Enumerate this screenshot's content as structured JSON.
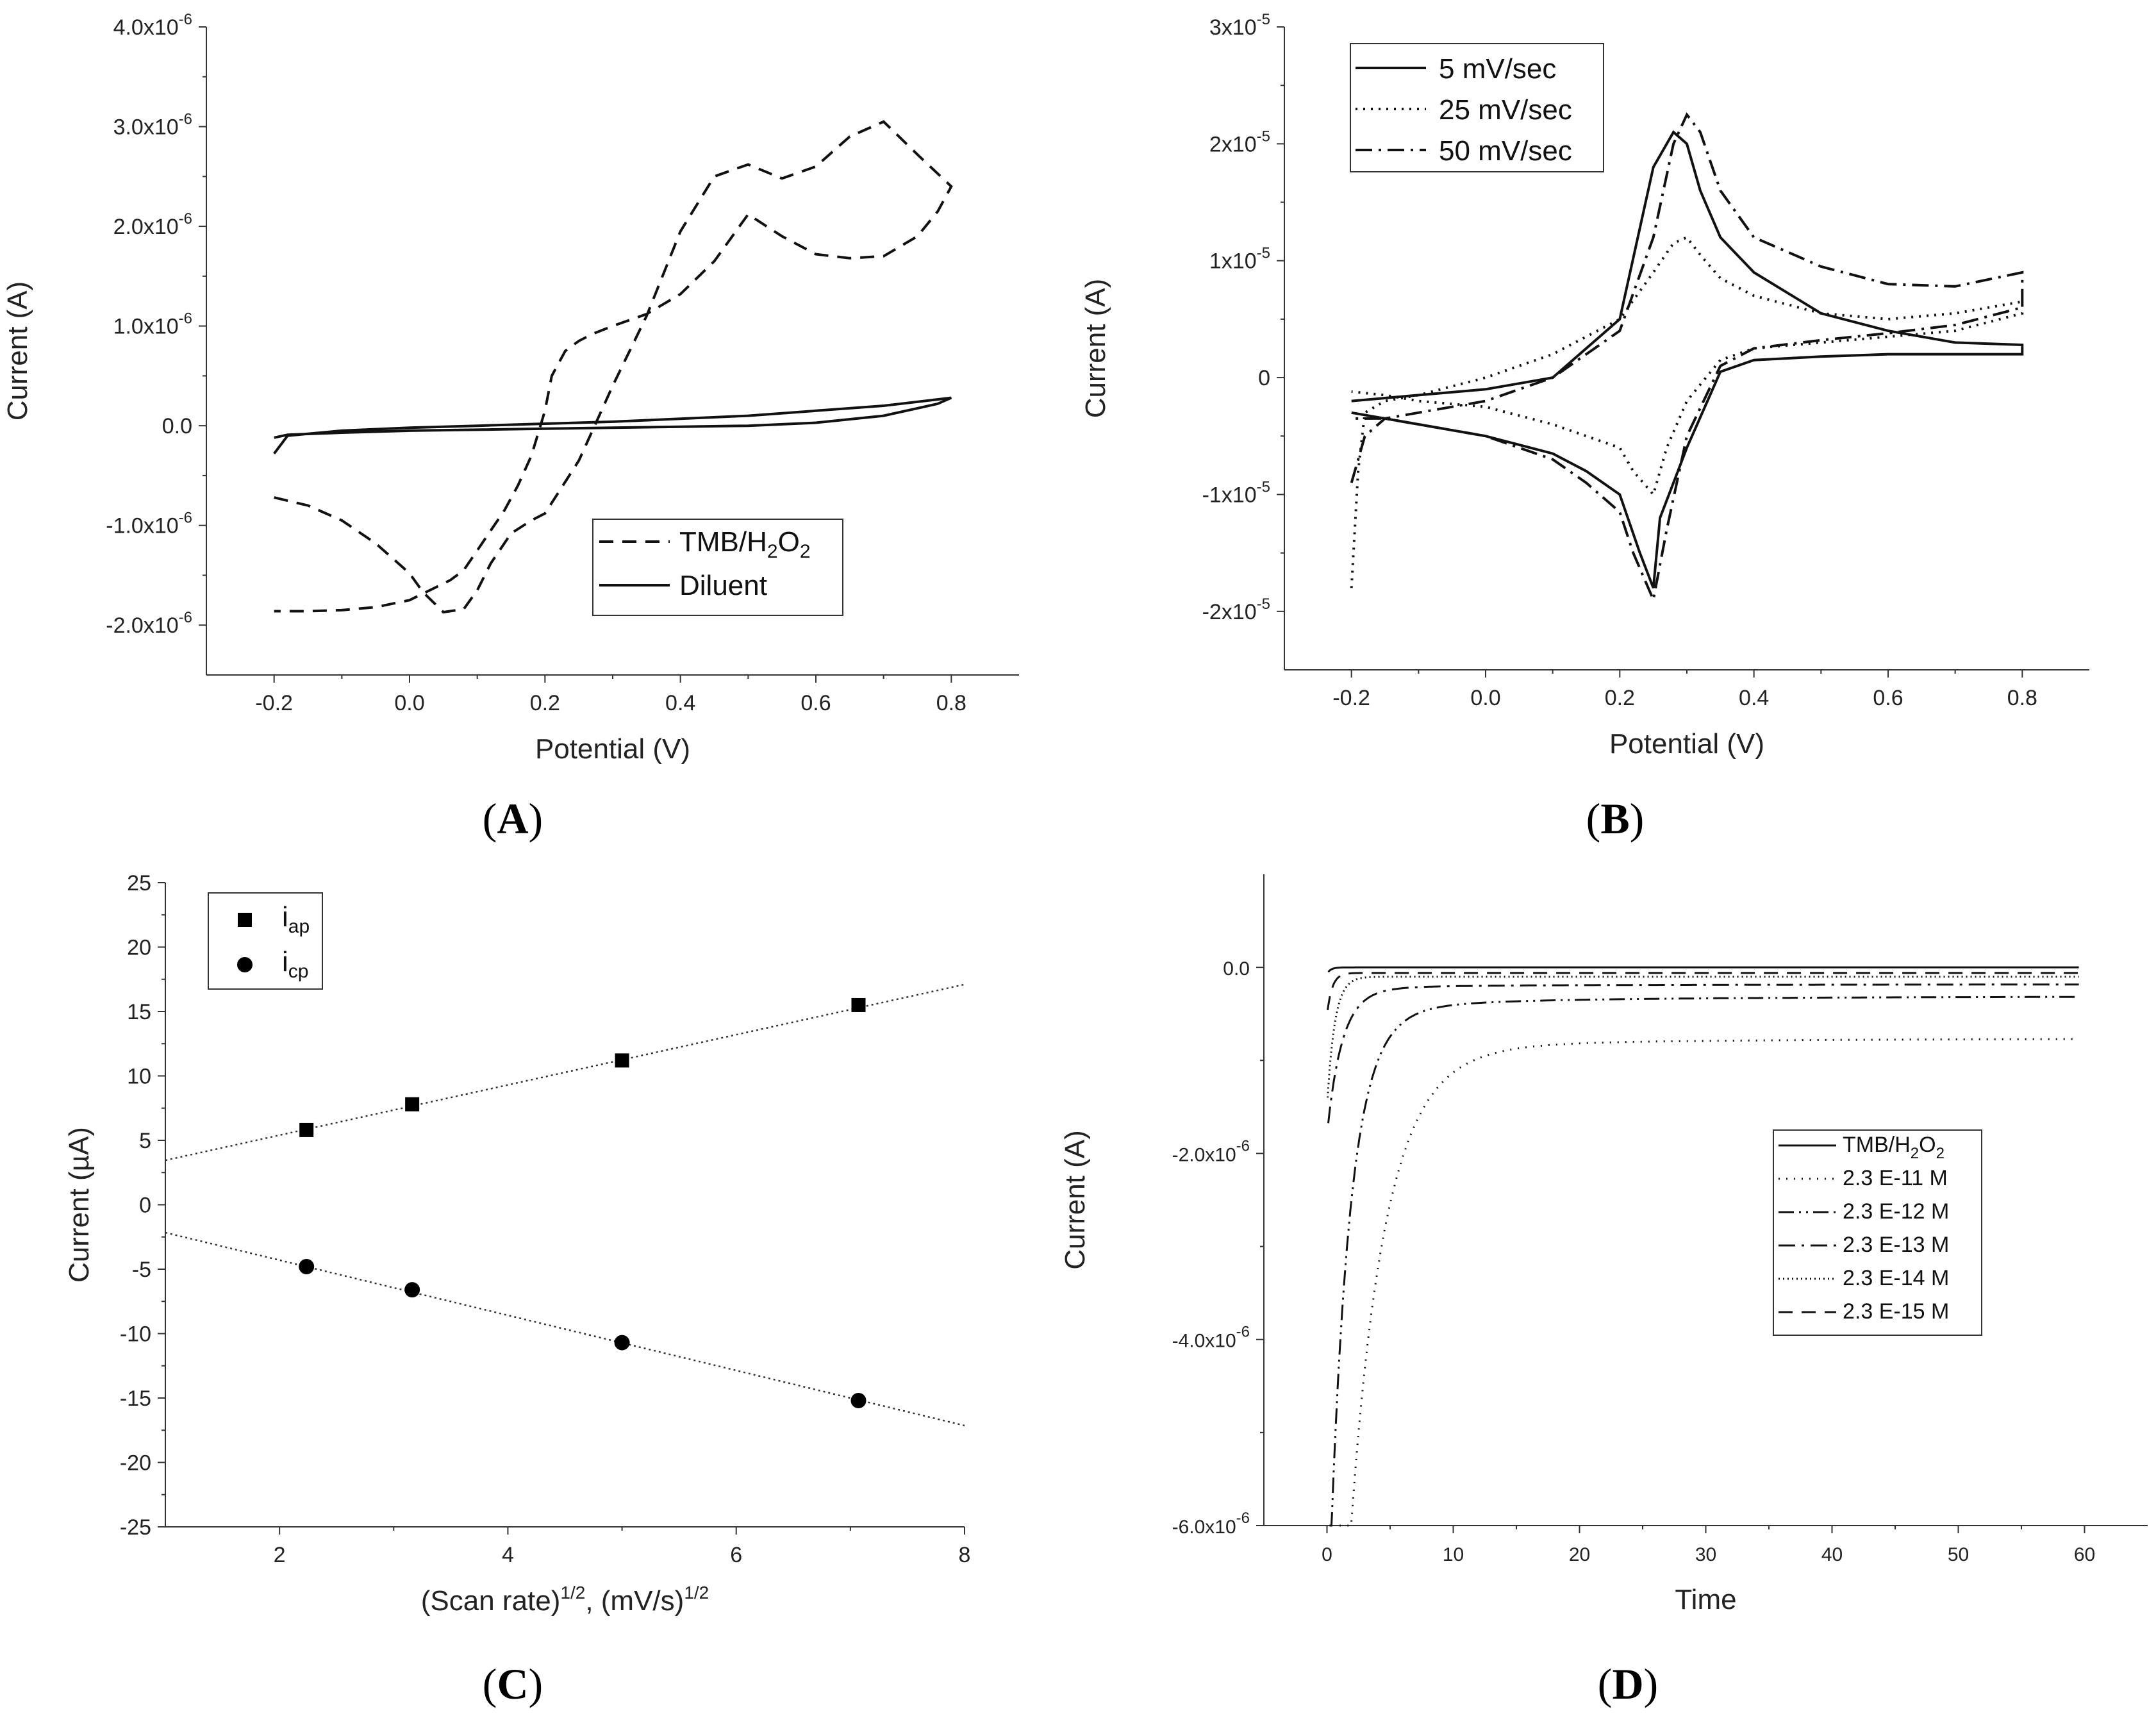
{
  "chart_data": [
    {
      "panel": "A",
      "type": "line",
      "xlabel": "Potential (V)",
      "ylabel": "Current (A)",
      "xlim": [
        -0.3,
        0.9
      ],
      "ylim": [
        -2.5e-06,
        4e-06
      ],
      "xticks": [
        -0.2,
        0.0,
        0.2,
        0.4,
        0.6,
        0.8
      ],
      "xtick_labels": [
        "-0.2",
        "0.0",
        "0.2",
        "0.4",
        "0.6",
        "0.8"
      ],
      "yticks": [
        -2e-06,
        -1e-06,
        0.0,
        1e-06,
        2e-06,
        3e-06,
        4e-06
      ],
      "ytick_labels": [
        {
          "mant": "-2.0x10",
          "exp": "-6"
        },
        {
          "mant": "-1.0x10",
          "exp": "-6"
        },
        {
          "mant": "0.0",
          "exp": ""
        },
        {
          "mant": "1.0x10",
          "exp": "-6"
        },
        {
          "mant": "2.0x10",
          "exp": "-6"
        },
        {
          "mant": "3.0x10",
          "exp": "-6"
        },
        {
          "mant": "4.0x10",
          "exp": "-6"
        }
      ],
      "legend_position": "lower-right",
      "series": [
        {
          "name": "TMB/H2O2",
          "legend_parts": [
            "TMB/H",
            "2",
            "O",
            "2"
          ],
          "style": "dashed",
          "x": [
            -0.2,
            -0.15,
            -0.1,
            -0.05,
            0.0,
            0.02,
            0.05,
            0.08,
            0.1,
            0.12,
            0.15,
            0.18,
            0.2,
            0.25,
            0.3,
            0.35,
            0.4,
            0.45,
            0.5,
            0.55,
            0.6,
            0.65,
            0.7,
            0.75,
            0.8,
            0.78,
            0.75,
            0.7,
            0.65,
            0.6,
            0.55,
            0.5,
            0.45,
            0.4,
            0.35,
            0.3,
            0.27,
            0.25,
            0.23,
            0.21,
            0.2,
            0.18,
            0.16,
            0.14,
            0.12,
            0.1,
            0.08,
            0.06,
            0.03,
            0.0,
            -0.05,
            -0.1,
            -0.15,
            -0.2
          ],
          "y": [
            -7.2e-07,
            -8e-07,
            -9.5e-07,
            -1.18e-06,
            -1.48e-06,
            -1.67e-06,
            -1.87e-06,
            -1.84e-06,
            -1.65e-06,
            -1.38e-06,
            -1.08e-06,
            -9.5e-07,
            -8.8e-07,
            -3.5e-07,
            4e-07,
            1.1e-06,
            1.95e-06,
            2.5e-06,
            2.62e-06,
            2.48e-06,
            2.6e-06,
            2.9e-06,
            3.05e-06,
            2.72e-06,
            2.4e-06,
            2.15e-06,
            1.9e-06,
            1.7e-06,
            1.68e-06,
            1.72e-06,
            1.9e-06,
            2.12e-06,
            1.65e-06,
            1.32e-06,
            1.12e-06,
            1e-06,
            9.2e-07,
            8.5e-07,
            7.5e-07,
            5e-07,
            1.5e-07,
            -3e-07,
            -6e-07,
            -8.5e-07,
            -1.05e-06,
            -1.25e-06,
            -1.45e-06,
            -1.55e-06,
            -1.65e-06,
            -1.75e-06,
            -1.82e-06,
            -1.85e-06,
            -1.86e-06,
            -1.86e-06
          ]
        },
        {
          "name": "Diluent",
          "style": "solid",
          "x": [
            -0.2,
            -0.18,
            -0.1,
            0.0,
            0.1,
            0.2,
            0.3,
            0.4,
            0.5,
            0.6,
            0.7,
            0.8,
            0.78,
            0.7,
            0.6,
            0.5,
            0.4,
            0.3,
            0.2,
            0.1,
            0.0,
            -0.1,
            -0.18,
            -0.2
          ],
          "y": [
            -2.8e-07,
            -1e-07,
            -5e-08,
            -2e-08,
            0.0,
            2e-08,
            4e-08,
            7e-08,
            1e-07,
            1.5e-07,
            2e-07,
            2.8e-07,
            2.2e-07,
            1e-07,
            3e-08,
            0.0,
            -1e-08,
            -2e-08,
            -3e-08,
            -4e-08,
            -5e-08,
            -7e-08,
            -9e-08,
            -1.2e-07
          ]
        }
      ]
    },
    {
      "panel": "B",
      "type": "line",
      "xlabel": "Potential (V)",
      "ylabel": "Current (A)",
      "xlim": [
        -0.3,
        0.9
      ],
      "ylim": [
        -2.5e-05,
        3e-05
      ],
      "xticks": [
        -0.2,
        0.0,
        0.2,
        0.4,
        0.6,
        0.8
      ],
      "xtick_labels": [
        "-0.2",
        "0.0",
        "0.2",
        "0.4",
        "0.6",
        "0.8"
      ],
      "yticks": [
        -2e-05,
        -1e-05,
        0,
        1e-05,
        2e-05,
        3e-05
      ],
      "ytick_labels": [
        {
          "mant": "-2x10",
          "exp": "-5"
        },
        {
          "mant": "-1x10",
          "exp": "-5"
        },
        {
          "mant": "0",
          "exp": ""
        },
        {
          "mant": "1x10",
          "exp": "-5"
        },
        {
          "mant": "2x10",
          "exp": "-5"
        },
        {
          "mant": "3x10",
          "exp": "-5"
        }
      ],
      "legend_position": "top-left",
      "series": [
        {
          "name": "5 mV/sec",
          "style": "solid",
          "x": [
            -0.2,
            -0.1,
            0.0,
            0.1,
            0.2,
            0.25,
            0.28,
            0.3,
            0.32,
            0.35,
            0.4,
            0.5,
            0.6,
            0.7,
            0.8,
            0.8,
            0.7,
            0.6,
            0.5,
            0.4,
            0.35,
            0.3,
            0.28,
            0.26,
            0.25,
            0.23,
            0.2,
            0.15,
            0.1,
            0.0,
            -0.1,
            -0.2
          ],
          "y": [
            -2e-06,
            -1.5e-06,
            -1e-06,
            0.0,
            5e-06,
            1.8e-05,
            2.1e-05,
            2e-05,
            1.6e-05,
            1.2e-05,
            9e-06,
            5.5e-06,
            4e-06,
            3e-06,
            2.8e-06,
            2e-06,
            2e-06,
            2e-06,
            1.8e-06,
            1.5e-06,
            5e-07,
            -6e-06,
            -9e-06,
            -1.2e-05,
            -1.8e-05,
            -1.5e-05,
            -1e-05,
            -8e-06,
            -6.5e-06,
            -5e-06,
            -4e-06,
            -3e-06
          ]
        },
        {
          "name": "25 mV/sec",
          "style": "dotted",
          "x": [
            -0.2,
            -0.19,
            -0.18,
            -0.15,
            -0.1,
            0.0,
            0.1,
            0.2,
            0.25,
            0.28,
            0.3,
            0.32,
            0.35,
            0.4,
            0.5,
            0.6,
            0.7,
            0.8,
            0.8,
            0.7,
            0.6,
            0.5,
            0.4,
            0.35,
            0.3,
            0.27,
            0.25,
            0.22,
            0.2,
            0.15,
            0.1,
            0.0,
            -0.1,
            -0.15,
            -0.2
          ],
          "y": [
            -1.8e-05,
            -8e-06,
            -3e-06,
            -2e-06,
            -1.5e-06,
            0.0,
            2e-06,
            5e-06,
            9e-06,
            1.15e-05,
            1.2e-05,
            1.05e-05,
            8.5e-06,
            7e-06,
            5.5e-06,
            5e-06,
            5.5e-06,
            6.5e-06,
            5.5e-06,
            4e-06,
            3.5e-06,
            3e-06,
            2.5e-06,
            1.5e-06,
            -2e-06,
            -6e-06,
            -1e-05,
            -8e-06,
            -6e-06,
            -5e-06,
            -4e-06,
            -2.5e-06,
            -2e-06,
            -1.5e-06,
            -1.2e-06
          ]
        },
        {
          "name": "50 mV/sec",
          "style": "dashdot",
          "x": [
            -0.2,
            -0.18,
            -0.15,
            -0.1,
            0.0,
            0.1,
            0.2,
            0.25,
            0.28,
            0.3,
            0.32,
            0.35,
            0.4,
            0.5,
            0.6,
            0.7,
            0.8,
            0.8,
            0.7,
            0.6,
            0.5,
            0.4,
            0.35,
            0.3,
            0.27,
            0.25,
            0.22,
            0.2,
            0.15,
            0.1,
            0.0,
            -0.1,
            -0.15,
            -0.2
          ],
          "y": [
            -9e-06,
            -5e-06,
            -3.5e-06,
            -3e-06,
            -2e-06,
            0.0,
            4e-06,
            1.2e-05,
            2e-05,
            2.25e-05,
            2.1e-05,
            1.6e-05,
            1.2e-05,
            9.5e-06,
            8e-06,
            7.8e-06,
            9e-06,
            6e-06,
            4.5e-06,
            3.8e-06,
            3.2e-06,
            2.5e-06,
            1e-06,
            -5e-06,
            -1.3e-05,
            -1.9e-05,
            -1.5e-05,
            -1.15e-05,
            -9e-06,
            -7e-06,
            -5e-06,
            -4e-06,
            -3.5e-06,
            -3.5e-06
          ]
        }
      ]
    },
    {
      "panel": "C",
      "type": "scatter",
      "xlabel": "(Scan rate)1/2, (mV/s)1/2",
      "xlabel_parts": [
        "(Scan rate)",
        "1/2",
        ", (mV/s)",
        "1/2"
      ],
      "ylabel": "Current (µA)",
      "xlim": [
        1,
        8
      ],
      "ylim": [
        -25,
        25
      ],
      "xticks": [
        2,
        4,
        6,
        8
      ],
      "xtick_labels": [
        "2",
        "4",
        "6",
        "8"
      ],
      "yticks": [
        -25,
        -20,
        -15,
        -10,
        -5,
        0,
        5,
        10,
        15,
        20,
        25
      ],
      "ytick_labels": [
        "-25",
        "-20",
        "-15",
        "-10",
        "-5",
        "0",
        "5",
        "10",
        "15",
        "20",
        "25"
      ],
      "legend_position": "top-left",
      "series": [
        {
          "name": "iap",
          "legend_parts": [
            "i",
            "ap"
          ],
          "marker": "square",
          "x": [
            2.236,
            3.162,
            5.0,
            7.071
          ],
          "y": [
            5.8,
            7.8,
            11.2,
            15.5
          ],
          "fit": {
            "slope": 1.95,
            "intercept": 1.5
          }
        },
        {
          "name": "icp",
          "legend_parts": [
            "i",
            "cp"
          ],
          "marker": "circle",
          "x": [
            2.236,
            3.162,
            5.0,
            7.071
          ],
          "y": [
            -4.8,
            -6.6,
            -10.7,
            -15.2
          ],
          "fit": {
            "slope": -2.14,
            "intercept": -0.02
          }
        }
      ]
    },
    {
      "panel": "D",
      "type": "line",
      "xlabel": "Time",
      "ylabel": "Current (A)",
      "xlim": [
        -5,
        65
      ],
      "ylim": [
        -6e-06,
        1e-06
      ],
      "xticks": [
        0,
        10,
        20,
        30,
        40,
        50,
        60
      ],
      "xtick_labels": [
        "0",
        "10",
        "20",
        "30",
        "40",
        "50",
        "60"
      ],
      "yticks": [
        -6e-06,
        -4e-06,
        -2e-06,
        0.0
      ],
      "ytick_labels": [
        {
          "mant": "-6.0x10",
          "exp": "-6"
        },
        {
          "mant": "-4.0x10",
          "exp": "-6"
        },
        {
          "mant": "-2.0x10",
          "exp": "-6"
        },
        {
          "mant": "0.0",
          "exp": ""
        }
      ],
      "legend_position": "right",
      "series": [
        {
          "name": "TMB/H2O2",
          "legend_parts": [
            "TMB/H",
            "2",
            "O",
            "2"
          ],
          "style": "solid",
          "t0": 0.1,
          "steady": -0.0,
          "amp": -5e-08,
          "tau": 0.3
        },
        {
          "name": "2.3 E-11 M",
          "style": "dotted-sparse",
          "t0": 1.0,
          "steady": -7.5e-07,
          "amp": -6.5e-06,
          "tau": 2.8
        },
        {
          "name": "2.3 E-12 M",
          "style": "dashdotdot",
          "t0": 0.2,
          "steady": -3e-07,
          "amp": -5.5e-06,
          "tau": 1.6
        },
        {
          "name": "2.3 E-13 M",
          "style": "dashdot",
          "t0": 0.1,
          "steady": -1.8e-07,
          "amp": -1.3e-06,
          "tau": 1.2
        },
        {
          "name": "2.3 E-14 M",
          "style": "dotted-dense",
          "t0": 0.05,
          "steady": -1e-07,
          "amp": -1.3e-06,
          "tau": 0.6
        },
        {
          "name": "2.3 E-15 M",
          "style": "dashed",
          "t0": 0.05,
          "steady": -6e-08,
          "amp": -4e-07,
          "tau": 0.4
        }
      ]
    }
  ],
  "panel_letters": [
    "A",
    "B",
    "C",
    "D"
  ]
}
